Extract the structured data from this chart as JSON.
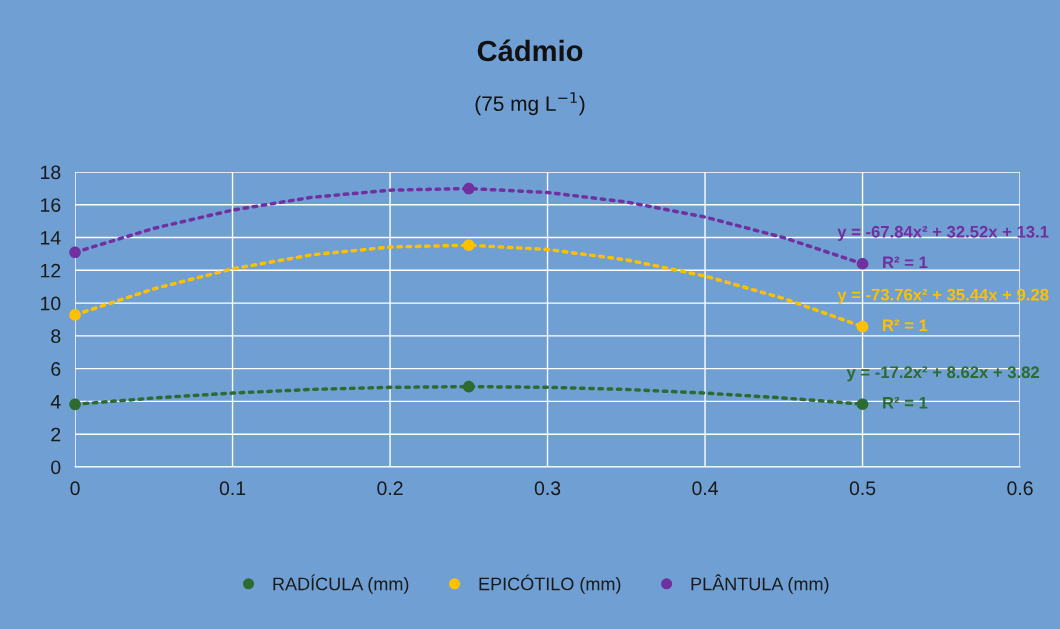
{
  "chart_data": {
    "type": "scatter",
    "title": "Cádmio",
    "subtitle": "(75 mg L$^{−1}$)",
    "xlim": [
      0,
      0.6
    ],
    "xticks": [
      0,
      0.1,
      0.2,
      0.3,
      0.4,
      0.5,
      0.6
    ],
    "ylim": [
      0,
      18
    ],
    "yticks": [
      0,
      2,
      4,
      6,
      8,
      10,
      12,
      14,
      16,
      18
    ],
    "grid": true,
    "legend": "bottom",
    "series": [
      {
        "name": "RADÍCULA (mm)",
        "marker": "circle",
        "color": "#2e6b30",
        "x": [
          0,
          0.25,
          0.5
        ],
        "values": [
          3.82,
          4.9,
          3.83
        ]
      },
      {
        "name": "EPICÓTILO (mm)",
        "marker": "circle",
        "color": "#ffc000",
        "x": [
          0,
          0.25,
          0.5
        ],
        "values": [
          9.28,
          13.53,
          8.56
        ]
      },
      {
        "name": "PLÂNTULA (mm)",
        "marker": "circle",
        "color": "#7030a0",
        "x": [
          0,
          0.25,
          0.5
        ],
        "values": [
          13.1,
          16.99,
          12.4
        ]
      },
      {
        "type": "line",
        "line_style": "dotted",
        "color": "#2e6b30",
        "x": [
          0,
          0.05,
          0.1,
          0.15,
          0.2,
          0.25,
          0.3,
          0.35,
          0.4,
          0.45,
          0.5
        ],
        "values": [
          3.82,
          4.21,
          4.51,
          4.73,
          4.86,
          4.9,
          4.86,
          4.73,
          4.51,
          4.21,
          3.83
        ]
      },
      {
        "type": "line",
        "line_style": "dotted",
        "color": "#ffc000",
        "x": [
          0,
          0.05,
          0.1,
          0.15,
          0.2,
          0.25,
          0.3,
          0.35,
          0.4,
          0.45,
          0.5
        ],
        "values": [
          9.28,
          10.87,
          12.09,
          12.94,
          13.42,
          13.53,
          13.27,
          12.64,
          11.65,
          10.28,
          8.56
        ]
      },
      {
        "type": "line",
        "line_style": "dotted",
        "color": "#7030a0",
        "x": [
          0,
          0.05,
          0.1,
          0.15,
          0.2,
          0.25,
          0.3,
          0.35,
          0.4,
          0.45,
          0.5
        ],
        "values": [
          13.1,
          14.56,
          15.67,
          16.45,
          16.89,
          16.99,
          16.75,
          16.17,
          15.25,
          13.99,
          12.4
        ]
      }
    ],
    "annotations": [
      "y = -17.2x² + 8.62x + 3.82",
      "R² = 1",
      "y = -73.76x² + 35.44x + 9.28",
      "R² = 1",
      "y = -67.84x² + 32.52x + 13.1",
      "R² = 1"
    ]
  }
}
